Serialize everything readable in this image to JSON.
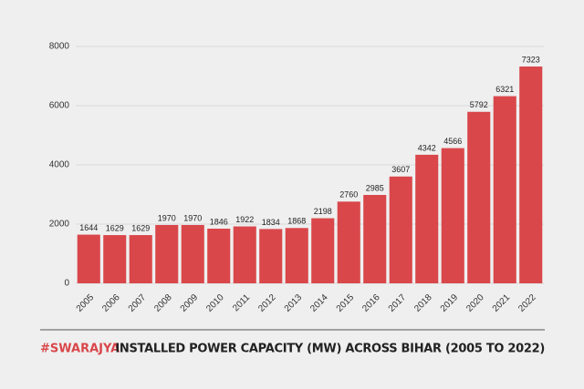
{
  "chart_data": {
    "type": "bar",
    "title": "INSTALLED POWER CAPACITY (MW) ACROSS BIHAR (2005 TO 2022)",
    "brand": "#SWARAJYA",
    "categories": [
      "2005",
      "2006",
      "2007",
      "2008",
      "2009",
      "2010",
      "2011",
      "2012",
      "2013",
      "2014",
      "2015",
      "2016",
      "2017",
      "2018",
      "2019",
      "2020",
      "2021",
      "2022"
    ],
    "values": [
      1644,
      1629,
      1629,
      1970,
      1970,
      1846,
      1922,
      1834,
      1868,
      2198,
      2760,
      2985,
      3607,
      4342,
      4566,
      5792,
      6321,
      7323
    ],
    "color": "#d9474b",
    "ylim": [
      0,
      8000
    ],
    "yticks": [
      0,
      2000,
      4000,
      6000,
      8000
    ],
    "grid": true
  }
}
